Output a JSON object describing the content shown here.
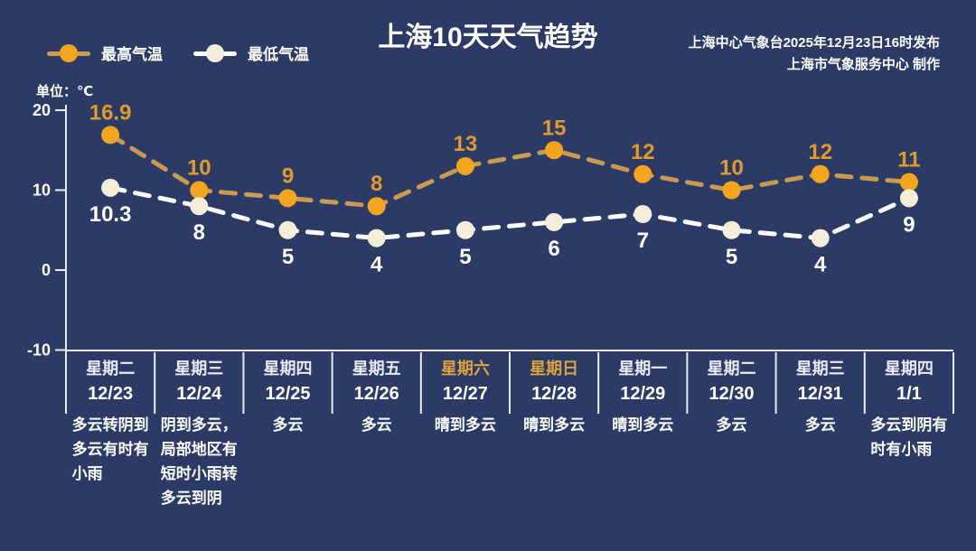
{
  "title": "上海10天天气趋势",
  "source": {
    "line1": "上海中心气象台2025年12月23日16时发布",
    "line2": "上海市气象服务中心  制作"
  },
  "unit_label": "单位：℃",
  "legend": [
    {
      "label": "最高气温"
    },
    {
      "label": "最低气温"
    }
  ],
  "colors": {
    "background": "#2c3b66",
    "axis": "#e8ecf5",
    "title_text": "#ffffff",
    "high_line": "#c99a52",
    "high_point": "#f3a61d",
    "high_label": "#e0992b",
    "low_line": "#ffffff",
    "low_point": "#f4edda",
    "low_label": "#ffffff",
    "weekend_text": "#dda33c",
    "weekday_text": "#e9ebf5",
    "date_text": "#ffffff",
    "desc_text": "#ffffff",
    "ytick_text": "#ffffff"
  },
  "chart_data": {
    "type": "line",
    "title": "上海10天天气趋势",
    "ylabel": "单位：℃",
    "ylim": [
      -10,
      20
    ],
    "yticks": [
      20,
      10,
      0,
      -10
    ],
    "grid": false,
    "legend_position": "top-left",
    "categories": [
      {
        "weekday": "星期二",
        "date": "12/23",
        "weather": "多云转阴到\n多云有时有\n小雨",
        "weekend": false
      },
      {
        "weekday": "星期三",
        "date": "12/24",
        "weather": "阴到多云，\n局部地区有\n短时小雨转\n多云到阴",
        "weekend": false
      },
      {
        "weekday": "星期四",
        "date": "12/25",
        "weather": "多云",
        "weekend": false
      },
      {
        "weekday": "星期五",
        "date": "12/26",
        "weather": "多云",
        "weekend": false
      },
      {
        "weekday": "星期六",
        "date": "12/27",
        "weather": "晴到多云",
        "weekend": true
      },
      {
        "weekday": "星期日",
        "date": "12/28",
        "weather": "晴到多云",
        "weekend": true
      },
      {
        "weekday": "星期一",
        "date": "12/29",
        "weather": "晴到多云",
        "weekend": false
      },
      {
        "weekday": "星期二",
        "date": "12/30",
        "weather": "多云",
        "weekend": false
      },
      {
        "weekday": "星期三",
        "date": "12/31",
        "weather": "多云",
        "weekend": false
      },
      {
        "weekday": "星期四",
        "date": "1/1",
        "weather": "多云到阴有\n时有小雨",
        "weekend": false
      }
    ],
    "series": [
      {
        "name": "最高气温",
        "values": [
          16.9,
          10,
          9,
          8,
          13,
          15,
          12,
          10,
          12,
          11
        ],
        "point_color": "#f3a61d",
        "line_color": "#c99a52",
        "label_color": "#e0992b",
        "label_position": "above"
      },
      {
        "name": "最低气温",
        "values": [
          10.3,
          8,
          5,
          4,
          5,
          6,
          7,
          5,
          4,
          9
        ],
        "point_color": "#f4edda",
        "line_color": "#ffffff",
        "label_color": "#ffffff",
        "label_position": "below"
      }
    ]
  }
}
